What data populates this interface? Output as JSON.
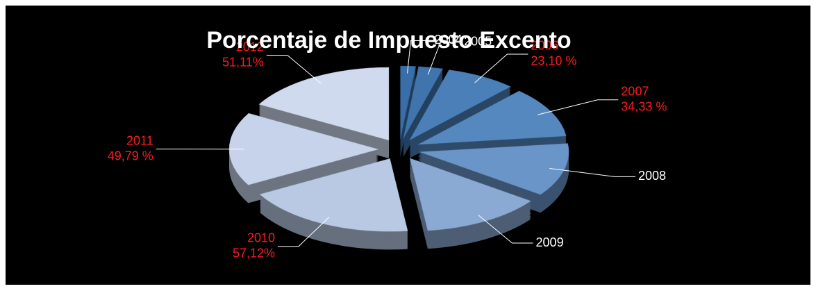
{
  "chart_data": {
    "type": "pie",
    "title": "Porcentaje de Impuesto Excento",
    "categories": [
      "2004",
      "2005",
      "2006",
      "2007",
      "2008",
      "2009",
      "2010",
      "2011",
      "2012"
    ],
    "values": [
      5,
      8,
      23.1,
      34.33,
      36,
      40,
      57.12,
      49.79,
      51.11
    ],
    "value_labels": [
      null,
      null,
      "23,10 %",
      "34,33 %",
      null,
      null,
      "57,12%",
      "49,79 %",
      "51,11%"
    ],
    "colors": [
      "#3a6ea8",
      "#3f74ad",
      "#4a7fb8",
      "#5688c0",
      "#6a95c8",
      "#8aa9d3",
      "#b9c9e3",
      "#c7d3ea",
      "#d0daee"
    ]
  }
}
